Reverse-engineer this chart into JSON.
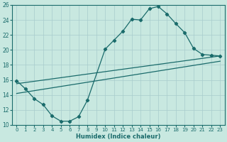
{
  "xlabel": "Humidex (Indice chaleur)",
  "bg_color": "#c8e8e0",
  "grid_color": "#a8cccc",
  "line_color": "#1a6b6b",
  "xlim": [
    -0.5,
    23.5
  ],
  "ylim": [
    10,
    26
  ],
  "xticks": [
    0,
    1,
    2,
    3,
    4,
    5,
    6,
    7,
    8,
    9,
    10,
    11,
    12,
    13,
    14,
    15,
    16,
    17,
    18,
    19,
    20,
    21,
    22,
    23
  ],
  "yticks": [
    10,
    12,
    14,
    16,
    18,
    20,
    22,
    24,
    26
  ],
  "curve_x": [
    0,
    1,
    2,
    3,
    4,
    5,
    6,
    7,
    8,
    10,
    11,
    12,
    13,
    14,
    15,
    16,
    17,
    18,
    19,
    20,
    21,
    22,
    23
  ],
  "curve_y": [
    15.9,
    14.8,
    13.5,
    12.7,
    11.2,
    10.5,
    10.5,
    11.1,
    13.3,
    20.1,
    21.3,
    22.5,
    24.1,
    24.0,
    25.5,
    25.8,
    24.8,
    23.5,
    22.3,
    20.2,
    19.4,
    19.3,
    19.2
  ],
  "line1_x": [
    0,
    23
  ],
  "line1_y": [
    15.5,
    19.2
  ],
  "line2_x": [
    0,
    23
  ],
  "line2_y": [
    14.2,
    18.5
  ]
}
